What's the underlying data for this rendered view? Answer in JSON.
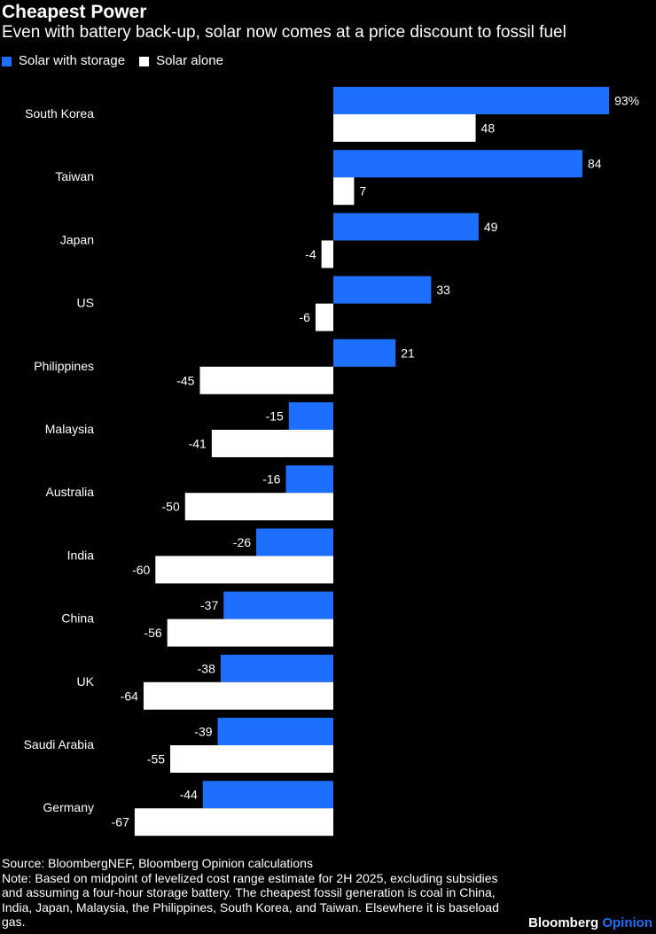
{
  "title": "Cheapest Power",
  "subtitle": "Even with battery back-up, solar now comes at a price discount to fossil fuel",
  "colors": {
    "storage": "#1f6fff",
    "alone": "#ffffff",
    "background": "#000000"
  },
  "chart_data": {
    "type": "bar",
    "orientation": "horizontal",
    "title": "Cheapest Power",
    "subtitle": "Even with battery back-up, solar now comes at a price discount to fossil fuel",
    "unit": "%",
    "legend": [
      "Solar with storage",
      "Solar alone"
    ],
    "legend_position": "top-left",
    "categories": [
      "South Korea",
      "Taiwan",
      "Japan",
      "US",
      "Philippines",
      "Malaysia",
      "Australia",
      "India",
      "China",
      "UK",
      "Saudi Arabia",
      "Germany"
    ],
    "series": [
      {
        "name": "Solar with storage",
        "values": [
          93,
          84,
          49,
          33,
          21,
          -15,
          -16,
          -26,
          -37,
          -38,
          -39,
          -44
        ]
      },
      {
        "name": "Solar alone",
        "values": [
          48,
          7,
          -4,
          -6,
          -45,
          -41,
          -50,
          -60,
          -56,
          -64,
          -55,
          -67
        ]
      }
    ],
    "first_label_suffix": "%",
    "xlim": [
      -67,
      93
    ],
    "grid": false
  },
  "footer": {
    "source": "Source: BloombergNEF, Bloomberg Opinion calculations",
    "note": "Note: Based on midpoint of levelized cost range estimate for 2H 2025, excluding subsidies and assuming a four-hour storage battery. The cheapest fossil generation is coal in China, India, Japan, Malaysia, the Philippines, South Korea, and Taiwan. Elsewhere it is baseload gas.",
    "brand_bold": "Bloomberg",
    "brand_accent": "Opinion"
  }
}
